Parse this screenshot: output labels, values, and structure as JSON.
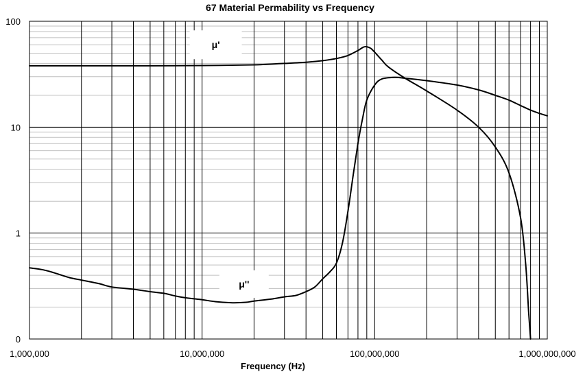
{
  "chart_data": {
    "type": "line",
    "title": "67 Material Permability vs Frequency",
    "xlabel": "Frequency (Hz)",
    "ylabel": "",
    "x_scale": "log",
    "y_scale": "log",
    "xlim": [
      1000000,
      1000000000
    ],
    "ylim": [
      0.1,
      100
    ],
    "grid": true,
    "legend": "none",
    "x_ticks": [
      {
        "value": 1000000,
        "label": "1,000,000"
      },
      {
        "value": 10000000,
        "label": "10,000,000"
      },
      {
        "value": 100000000,
        "label": "100,000,000"
      },
      {
        "value": 1000000000,
        "label": "1,000,000,000"
      }
    ],
    "y_ticks": [
      {
        "value": 0.1,
        "label": "0"
      },
      {
        "value": 1,
        "label": "1"
      },
      {
        "value": 10,
        "label": "10"
      },
      {
        "value": 100,
        "label": "100"
      }
    ],
    "series": [
      {
        "name": "μ'",
        "label_x": 12000000,
        "label_y": 60,
        "points": [
          [
            1000000,
            38
          ],
          [
            2000000,
            38
          ],
          [
            5000000,
            38
          ],
          [
            10000000,
            38.2
          ],
          [
            20000000,
            38.8
          ],
          [
            30000000,
            40
          ],
          [
            40000000,
            41
          ],
          [
            50000000,
            42.5
          ],
          [
            60000000,
            44.5
          ],
          [
            70000000,
            47.5
          ],
          [
            80000000,
            53
          ],
          [
            86000000,
            57
          ],
          [
            90000000,
            57.5
          ],
          [
            95000000,
            55.5
          ],
          [
            100000000,
            51
          ],
          [
            110000000,
            43
          ],
          [
            120000000,
            37
          ],
          [
            150000000,
            29
          ],
          [
            200000000,
            22
          ],
          [
            300000000,
            14.5
          ],
          [
            400000000,
            10
          ],
          [
            500000000,
            6.5
          ],
          [
            600000000,
            3.7
          ],
          [
            700000000,
            1.4
          ],
          [
            750000000,
            0.5
          ],
          [
            780000000,
            0.18
          ],
          [
            800000000,
            0.1
          ]
        ]
      },
      {
        "name": "μ''",
        "label_x": 17500000,
        "label_y": 0.33,
        "points": [
          [
            1000000,
            0.47
          ],
          [
            1200000,
            0.45
          ],
          [
            1400000,
            0.42
          ],
          [
            1700000,
            0.38
          ],
          [
            2000000,
            0.36
          ],
          [
            2500000,
            0.335
          ],
          [
            3000000,
            0.31
          ],
          [
            4000000,
            0.295
          ],
          [
            5000000,
            0.28
          ],
          [
            6000000,
            0.27
          ],
          [
            7000000,
            0.255
          ],
          [
            8000000,
            0.245
          ],
          [
            10000000,
            0.235
          ],
          [
            12000000,
            0.225
          ],
          [
            15000000,
            0.22
          ],
          [
            18000000,
            0.222
          ],
          [
            20000000,
            0.228
          ],
          [
            25000000,
            0.238
          ],
          [
            30000000,
            0.25
          ],
          [
            35000000,
            0.258
          ],
          [
            40000000,
            0.28
          ],
          [
            45000000,
            0.31
          ],
          [
            50000000,
            0.37
          ],
          [
            55000000,
            0.43
          ],
          [
            60000000,
            0.52
          ],
          [
            65000000,
            0.8
          ],
          [
            70000000,
            1.6
          ],
          [
            75000000,
            3.5
          ],
          [
            80000000,
            7
          ],
          [
            85000000,
            12
          ],
          [
            90000000,
            18
          ],
          [
            100000000,
            25
          ],
          [
            110000000,
            28.5
          ],
          [
            130000000,
            29.5
          ],
          [
            150000000,
            29
          ],
          [
            200000000,
            27.5
          ],
          [
            300000000,
            25
          ],
          [
            400000000,
            22.5
          ],
          [
            500000000,
            20
          ],
          [
            600000000,
            18
          ],
          [
            700000000,
            16
          ],
          [
            800000000,
            14.5
          ],
          [
            900000000,
            13.5
          ],
          [
            1000000000,
            12.8
          ]
        ]
      }
    ]
  }
}
